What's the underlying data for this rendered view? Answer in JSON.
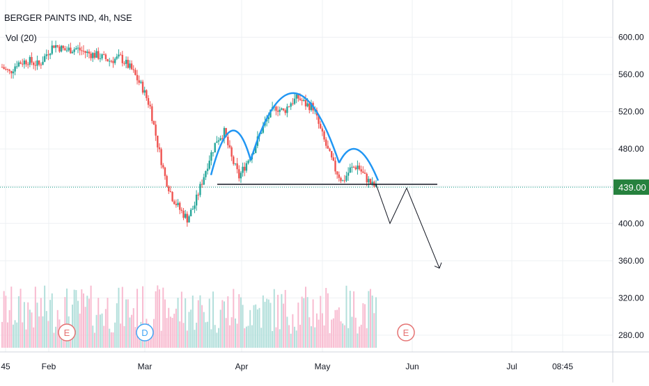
{
  "legend": {
    "title": "BERGER PAINTS IND, 4h, NSE",
    "volume_indicator": "Vol (20)"
  },
  "colors": {
    "up": "#26a69a",
    "down": "#ef5350",
    "up_volume": "#b2dfdb",
    "down_volume": "#f8bbd0",
    "pattern_curve": "#2196f3",
    "neckline": "#131722",
    "projection": "#131722",
    "last_price_line": "#089981",
    "last_price_label_bg": "#26813e",
    "grid": "#eef0f3",
    "axis_text": "#131722"
  },
  "icons": [
    "earnings-e-icon",
    "dividend-d-icon",
    "earnings-e-icon"
  ],
  "chart_data": {
    "type": "candlestick",
    "title": "BERGER PAINTS IND, 4h, NSE",
    "y_ticks": [
      280,
      320,
      360,
      400,
      440,
      480,
      520,
      560,
      600
    ],
    "y_tick_labels": [
      "280.00",
      "320.00",
      "360.00",
      "400.00",
      "440.00",
      "480.00",
      "520.00",
      "560.00",
      "600.00"
    ],
    "x_tick_labels": [
      "45",
      "Feb",
      "Mar",
      "Apr",
      "May",
      "Jun",
      "Jul",
      "08:45"
    ],
    "ylim": [
      262,
      640
    ],
    "last_price": 439.0,
    "last_price_label": "439.00",
    "grid": true,
    "price_path_keypoints": [
      {
        "t": 0,
        "p": 568
      },
      {
        "t": 4,
        "p": 562
      },
      {
        "t": 8,
        "p": 572
      },
      {
        "t": 14,
        "p": 575
      },
      {
        "t": 20,
        "p": 570
      },
      {
        "t": 24,
        "p": 582
      },
      {
        "t": 28,
        "p": 592
      },
      {
        "t": 34,
        "p": 586
      },
      {
        "t": 40,
        "p": 588
      },
      {
        "t": 46,
        "p": 583
      },
      {
        "t": 52,
        "p": 580
      },
      {
        "t": 58,
        "p": 575
      },
      {
        "t": 64,
        "p": 578
      },
      {
        "t": 70,
        "p": 565
      },
      {
        "t": 76,
        "p": 545
      },
      {
        "t": 80,
        "p": 525
      },
      {
        "t": 84,
        "p": 485
      },
      {
        "t": 88,
        "p": 450
      },
      {
        "t": 92,
        "p": 428
      },
      {
        "t": 96,
        "p": 415
      },
      {
        "t": 100,
        "p": 405
      },
      {
        "t": 104,
        "p": 420
      },
      {
        "t": 108,
        "p": 445
      },
      {
        "t": 112,
        "p": 470
      },
      {
        "t": 116,
        "p": 490
      },
      {
        "t": 120,
        "p": 498
      },
      {
        "t": 124,
        "p": 470
      },
      {
        "t": 128,
        "p": 450
      },
      {
        "t": 132,
        "p": 465
      },
      {
        "t": 136,
        "p": 480
      },
      {
        "t": 140,
        "p": 500
      },
      {
        "t": 144,
        "p": 515
      },
      {
        "t": 148,
        "p": 525
      },
      {
        "t": 152,
        "p": 520
      },
      {
        "t": 156,
        "p": 530
      },
      {
        "t": 160,
        "p": 535
      },
      {
        "t": 164,
        "p": 528
      },
      {
        "t": 168,
        "p": 525
      },
      {
        "t": 172,
        "p": 500
      },
      {
        "t": 176,
        "p": 478
      },
      {
        "t": 180,
        "p": 458
      },
      {
        "t": 184,
        "p": 445
      },
      {
        "t": 188,
        "p": 458
      },
      {
        "t": 192,
        "p": 462
      },
      {
        "t": 196,
        "p": 450
      },
      {
        "t": 200,
        "p": 441
      },
      {
        "t": 202,
        "p": 439
      }
    ],
    "head_and_shoulders": {
      "left_shoulder_peak": 512,
      "head_peak": 550,
      "right_shoulder_peak": 482,
      "neckline": 442
    },
    "projection_path": [
      442,
      400,
      438,
      352
    ],
    "event_markers": [
      "E",
      "D",
      "E"
    ]
  }
}
